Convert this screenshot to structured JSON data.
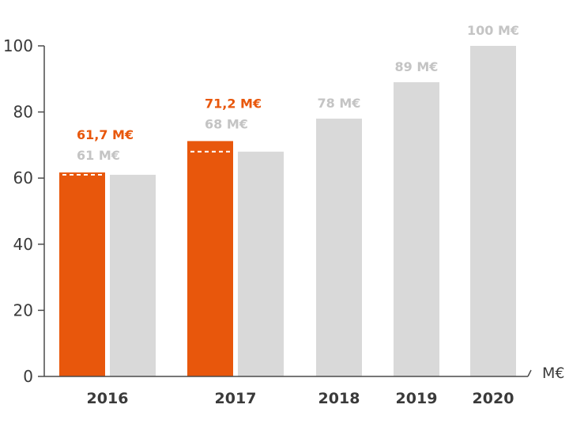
{
  "chart_data": {
    "type": "bar",
    "categories": [
      "2016",
      "2017",
      "2018",
      "2019",
      "2020"
    ],
    "series": [
      {
        "values": [
          61.7,
          71.2,
          null,
          null,
          null
        ],
        "labels": [
          "61,7 M€",
          "71,2 M€",
          "",
          "",
          ""
        ],
        "color": "#e8570c"
      },
      {
        "values": [
          61,
          68,
          78,
          89,
          100
        ],
        "labels": [
          "61 M€",
          "68 M€",
          "78 M€",
          "89 M€",
          "100 M€"
        ],
        "color": "#d9d9d9"
      }
    ],
    "reference_marks": [
      61,
      68
    ],
    "y_ticks": [
      "0",
      "20",
      "40",
      "60",
      "80",
      "100"
    ],
    "ylabel": "M€",
    "ylim": [
      0,
      100
    ],
    "grid": false,
    "legend": "none"
  }
}
